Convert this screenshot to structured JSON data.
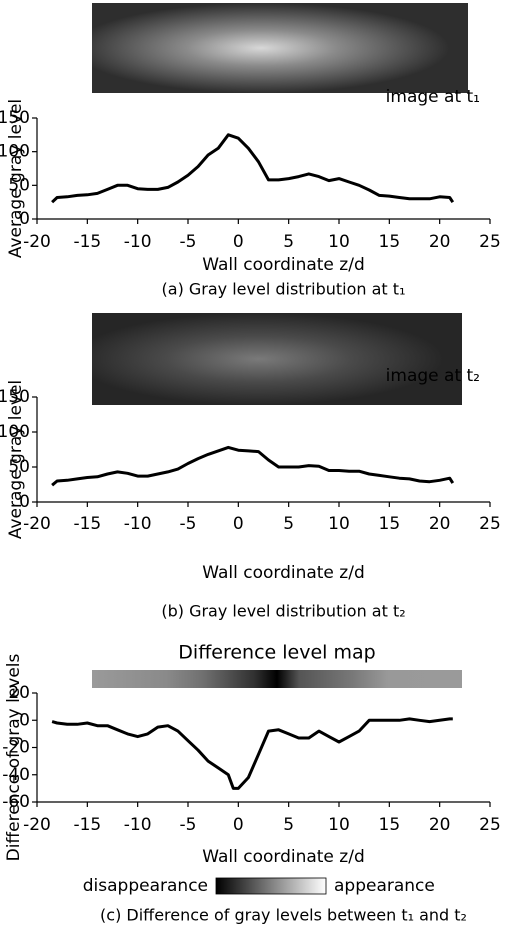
{
  "chart_data": [
    {
      "type": "line",
      "annotation": "image at t₁",
      "xlabel": "Wall coordinate z/d",
      "ylabel": "Average gray level",
      "caption": "(a) Gray level distribution at t₁",
      "color": "#000000",
      "xlim": [
        -20,
        25
      ],
      "xticks": [
        -20,
        -15,
        -10,
        -5,
        0,
        5,
        10,
        15,
        20,
        25
      ],
      "ylim": [
        0,
        150
      ],
      "yticks": [
        0,
        50,
        100,
        150
      ],
      "x": [
        -18.5,
        -18,
        -17,
        -16,
        -15,
        -14,
        -13,
        -12,
        -11,
        -10,
        -9,
        -8,
        -7,
        -6,
        -5,
        -4,
        -3,
        -2,
        -1,
        0,
        1,
        2,
        3,
        4,
        5,
        6,
        7,
        8,
        9,
        10,
        11,
        12,
        13,
        14,
        15,
        16,
        17,
        18,
        19,
        20,
        21,
        21.3
      ],
      "values": [
        25,
        32,
        33,
        35,
        36,
        38,
        44,
        50,
        50,
        45,
        44,
        44,
        47,
        55,
        65,
        78,
        95,
        105,
        125,
        120,
        105,
        85,
        58,
        58,
        60,
        63,
        67,
        63,
        57,
        60,
        55,
        50,
        43,
        35,
        34,
        32,
        30,
        30,
        30,
        33,
        32,
        25
      ]
    },
    {
      "type": "line",
      "annotation": "image at t₂",
      "xlabel": "Wall coordinate z/d",
      "ylabel": "Average gray level",
      "caption": "(b) Gray level distribution at t₂",
      "color": "#000000",
      "xlim": [
        -20,
        25
      ],
      "xticks": [
        -20,
        -15,
        -10,
        -5,
        0,
        5,
        10,
        15,
        20,
        25
      ],
      "ylim": [
        0,
        150
      ],
      "yticks": [
        0,
        50,
        100,
        150
      ],
      "x": [
        -18.5,
        -18,
        -17,
        -16,
        -15,
        -14,
        -13,
        -12,
        -11,
        -10,
        -9,
        -8,
        -7,
        -6,
        -5,
        -4,
        -3,
        -2,
        -1,
        0,
        1,
        2,
        3,
        4,
        5,
        6,
        7,
        8,
        9,
        10,
        11,
        12,
        13,
        14,
        15,
        16,
        17,
        18,
        19,
        20,
        21,
        21.3
      ],
      "values": [
        24,
        30,
        31,
        33,
        35,
        36,
        40,
        43,
        41,
        37,
        37,
        40,
        43,
        47,
        55,
        62,
        68,
        73,
        78,
        74,
        73,
        72,
        60,
        50,
        50,
        50,
        52,
        51,
        45,
        45,
        44,
        44,
        40,
        38,
        36,
        34,
        33,
        30,
        29,
        31,
        34,
        27
      ]
    },
    {
      "type": "line",
      "title": "Difference level map",
      "xlabel": "Wall coordinate z/d",
      "ylabel": "Difference of gray levels",
      "caption": "(c) Difference of gray levels between t₁ and t₂",
      "legend_labels": [
        "disappearance",
        "appearance"
      ],
      "color": "#000000",
      "xlim": [
        -20,
        25
      ],
      "xticks": [
        -20,
        -15,
        -10,
        -5,
        0,
        5,
        10,
        15,
        20,
        25
      ],
      "ylim": [
        -60,
        20
      ],
      "yticks": [
        -60,
        -40,
        -20,
        0,
        20
      ],
      "x": [
        -18.5,
        -18,
        -17,
        -16,
        -15,
        -14,
        -13,
        -12,
        -11,
        -10,
        -9,
        -8,
        -7,
        -6,
        -5,
        -4,
        -3,
        -2,
        -1,
        -0.5,
        0,
        1,
        2,
        3,
        4,
        5,
        6,
        7,
        8,
        9,
        10,
        11,
        12,
        13,
        14,
        15,
        16,
        17,
        18,
        19,
        20,
        21,
        21.3
      ],
      "values": [
        -1,
        -2,
        -3,
        -3,
        -2,
        -4,
        -4,
        -7,
        -10,
        -12,
        -10,
        -5,
        -4,
        -8,
        -15,
        -22,
        -30,
        -35,
        -40,
        -50,
        -50,
        -42,
        -25,
        -8,
        -7,
        -10,
        -13,
        -13,
        -8,
        -12,
        -16,
        -12,
        -8,
        0,
        0,
        0,
        0,
        1,
        0,
        -1,
        0,
        1,
        1
      ]
    }
  ]
}
